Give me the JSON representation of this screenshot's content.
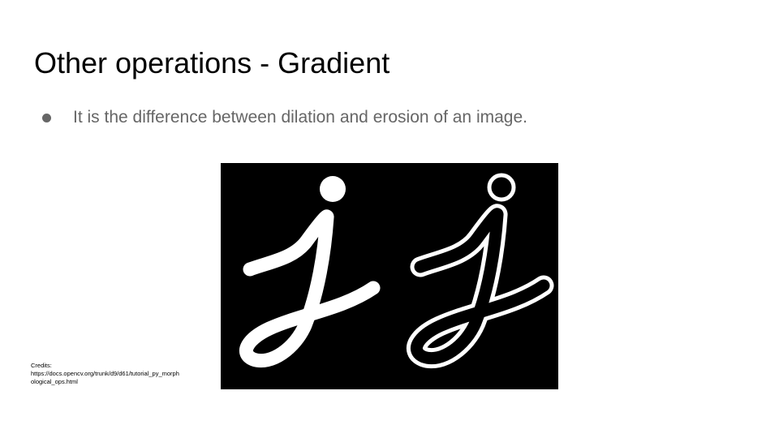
{
  "slide": {
    "title": "Other operations - Gradient",
    "bullets": [
      {
        "text": "It is the difference between dilation and erosion of an image."
      }
    ],
    "credits": {
      "label": "Credits:",
      "url_line1": "https://docs.opencv.org/trunk/d9/d61/tutorial_py_morph",
      "url_line2": "ological_ops.html"
    }
  },
  "colors": {
    "title": "#000000",
    "bullet_text": "#666666",
    "figure_background": "#000000",
    "glyph": "#ffffff"
  },
  "figure": {
    "panels": [
      "original-j",
      "gradient-j"
    ]
  }
}
